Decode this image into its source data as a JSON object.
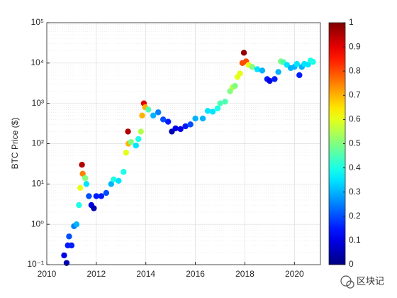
{
  "chart_data": {
    "type": "scatter",
    "ylabel": "BTC Price ($)",
    "x": [
      2010.7,
      2010.8,
      2010.85,
      2010.9,
      2011.0,
      2011.1,
      2011.2,
      2011.3,
      2011.35,
      2011.42,
      2011.45,
      2011.55,
      2011.6,
      2011.7,
      2011.8,
      2011.9,
      2012.0,
      2012.2,
      2012.4,
      2012.6,
      2012.7,
      2012.9,
      2013.1,
      2013.2,
      2013.28,
      2013.3,
      2013.4,
      2013.6,
      2013.7,
      2013.8,
      2013.85,
      2013.92,
      2013.97,
      2014.1,
      2014.3,
      2014.5,
      2014.7,
      2014.9,
      2015.05,
      2015.2,
      2015.4,
      2015.6,
      2015.8,
      2016.0,
      2016.3,
      2016.5,
      2016.7,
      2016.9,
      2017.0,
      2017.2,
      2017.4,
      2017.5,
      2017.6,
      2017.7,
      2017.8,
      2017.9,
      2017.96,
      2018.05,
      2018.15,
      2018.3,
      2018.5,
      2018.7,
      2018.9,
      2019.0,
      2019.2,
      2019.35,
      2019.45,
      2019.55,
      2019.7,
      2019.85,
      2020.0,
      2020.1,
      2020.2,
      2020.3,
      2020.4,
      2020.55,
      2020.65,
      2020.75
    ],
    "y": [
      0.17,
      0.11,
      0.3,
      0.5,
      0.3,
      0.9,
      1,
      3,
      8,
      30,
      18,
      14,
      10,
      5,
      3,
      2.5,
      5,
      5,
      6,
      10,
      13,
      12,
      20,
      60,
      200,
      100,
      110,
      90,
      130,
      200,
      500,
      1000,
      800,
      700,
      500,
      600,
      400,
      350,
      200,
      240,
      230,
      270,
      300,
      420,
      420,
      650,
      620,
      750,
      1000,
      1100,
      2000,
      2500,
      2700,
      4500,
      5500,
      10000,
      18000,
      11000,
      9000,
      8000,
      7000,
      6500,
      4000,
      3600,
      4000,
      6000,
      11000,
      10500,
      9000,
      7500,
      8000,
      9500,
      5000,
      8000,
      9500,
      9200,
      11500,
      10700
    ],
    "c": [
      0.1,
      0.05,
      0.15,
      0.2,
      0.15,
      0.25,
      0.3,
      0.4,
      0.6,
      0.95,
      0.75,
      0.5,
      0.35,
      0.2,
      0.1,
      0.05,
      0.15,
      0.15,
      0.2,
      0.3,
      0.4,
      0.35,
      0.4,
      0.6,
      0.95,
      0.7,
      0.5,
      0.35,
      0.4,
      0.55,
      0.7,
      0.9,
      0.7,
      0.45,
      0.3,
      0.25,
      0.2,
      0.15,
      0.05,
      0.1,
      0.1,
      0.15,
      0.2,
      0.3,
      0.3,
      0.35,
      0.35,
      0.4,
      0.45,
      0.45,
      0.5,
      0.55,
      0.5,
      0.6,
      0.6,
      0.8,
      0.98,
      0.8,
      0.6,
      0.5,
      0.35,
      0.3,
      0.15,
      0.1,
      0.15,
      0.3,
      0.5,
      0.45,
      0.35,
      0.3,
      0.3,
      0.35,
      0.15,
      0.3,
      0.35,
      0.35,
      0.4,
      0.4
    ],
    "xlim": [
      2010,
      2021.05
    ],
    "xticks": [
      2010,
      2012,
      2014,
      2016,
      2018,
      2020
    ],
    "ylim": [
      0.1,
      100000
    ],
    "yticks": [
      {
        "value": 0.1,
        "label": "10⁻¹"
      },
      {
        "value": 1,
        "label": "10⁰"
      },
      {
        "value": 10,
        "label": "10¹"
      },
      {
        "value": 100,
        "label": "10²"
      },
      {
        "value": 1000,
        "label": "10³"
      },
      {
        "value": 10000,
        "label": "10⁴"
      },
      {
        "value": 100000,
        "label": "10⁵"
      }
    ],
    "log_y": true,
    "grid": true,
    "colormap": "jet",
    "clim": [
      0,
      1
    ],
    "cticks": [
      0,
      0.1,
      0.2,
      0.3,
      0.4,
      0.5,
      0.6,
      0.7,
      0.8,
      0.9,
      1
    ]
  },
  "watermark": "区块记"
}
